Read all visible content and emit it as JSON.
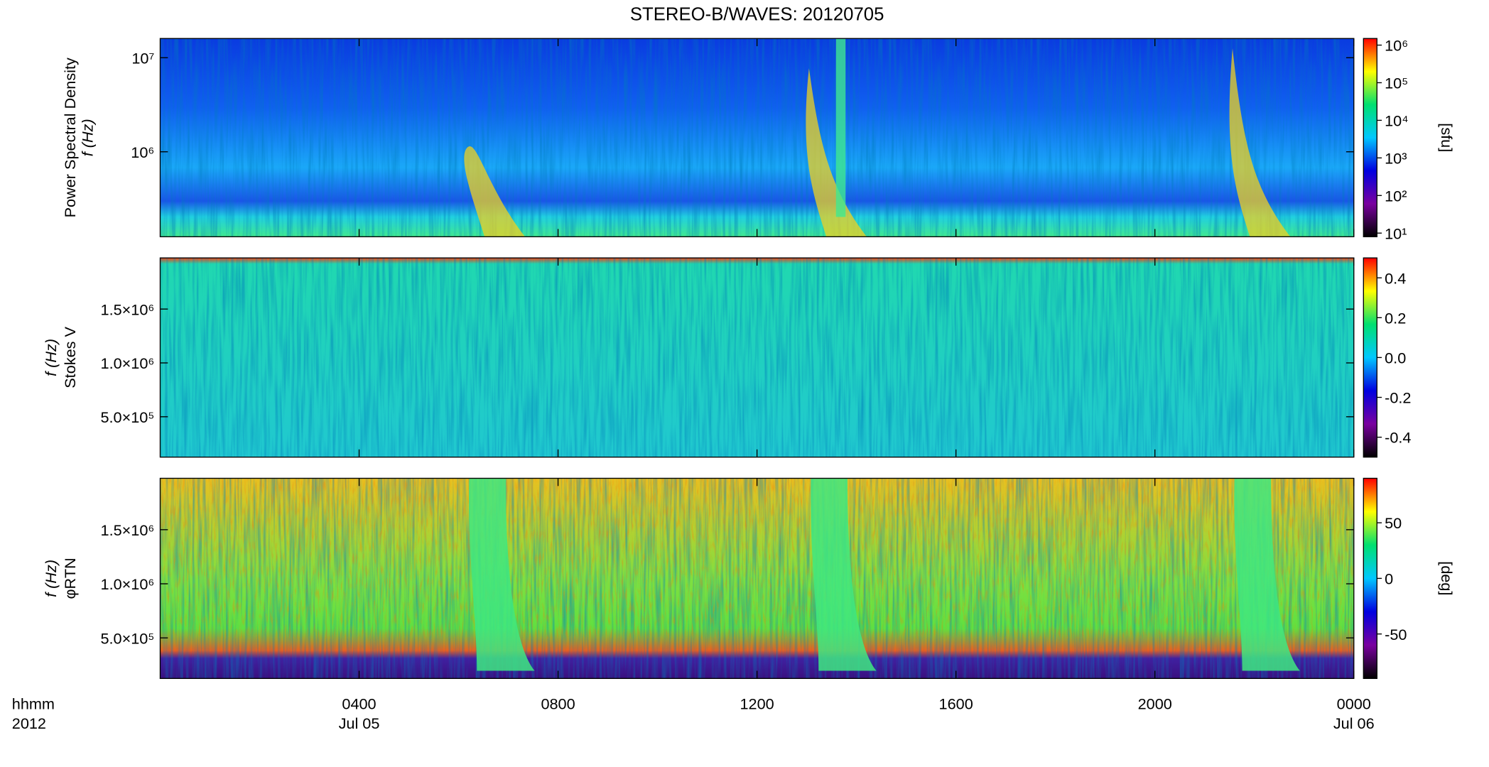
{
  "title": "STEREO-B/WAVES: 20120705",
  "chart_data": [
    {
      "type": "heatmap",
      "ylabel": "Power Spectral Density",
      "yunit": "f (Hz)",
      "log_y": true,
      "xlim": [
        0,
        24
      ],
      "ylim": [
        125000,
        16000000
      ],
      "yticks": [
        {
          "value": 1000000,
          "label": "10⁶"
        },
        {
          "value": 10000000,
          "label": "10⁷"
        }
      ],
      "colorbar": {
        "label": "[sfu]",
        "log": true,
        "lim": [
          8,
          1500000
        ],
        "colors": [
          "#000000",
          "#7a00a0",
          "#0000e0",
          "#00c8ff",
          "#00e070",
          "#ffff00",
          "#ff0000"
        ],
        "ticks": [
          {
            "value": 10,
            "label": "10¹"
          },
          {
            "value": 100,
            "label": "10²"
          },
          {
            "value": 1000,
            "label": "10³"
          },
          {
            "value": 10000,
            "label": "10⁴"
          },
          {
            "value": 100000,
            "label": "10⁵"
          },
          {
            "value": 1000000,
            "label": "10⁶"
          }
        ]
      }
    },
    {
      "type": "heatmap",
      "ylabel": "Stokes V",
      "yunit": "f (Hz)",
      "log_y": false,
      "xlim": [
        0,
        24
      ],
      "ylim": [
        125000,
        1975000
      ],
      "yticks": [
        {
          "value": 500000,
          "label": "5.0×10⁵"
        },
        {
          "value": 1000000,
          "label": "1.0×10⁶"
        },
        {
          "value": 1500000,
          "label": "1.5×10⁶"
        }
      ],
      "colorbar": {
        "log": false,
        "lim": [
          -0.5,
          0.5
        ],
        "colors": [
          "#000000",
          "#7a00a0",
          "#0000e0",
          "#00c8ff",
          "#00e070",
          "#ffff00",
          "#ff0000"
        ],
        "ticks": [
          -0.4,
          -0.2,
          {
            "value": 0,
            "label": "0.0"
          },
          0.2,
          0.4
        ]
      }
    },
    {
      "type": "heatmap",
      "ylabel": "φRTN",
      "yunit": "f (Hz)",
      "log_y": false,
      "xlim": [
        0,
        24
      ],
      "ylim": [
        125000,
        1975000
      ],
      "yticks": [
        {
          "value": 500000,
          "label": "5.0×10⁵"
        },
        {
          "value": 1000000,
          "label": "1.0×10⁶"
        },
        {
          "value": 1500000,
          "label": "1.5×10⁶"
        }
      ],
      "colorbar": {
        "label": "[deg]",
        "log": false,
        "lim": [
          -90,
          90
        ],
        "colors": [
          "#000000",
          "#7a00a0",
          "#0000e0",
          "#00c8ff",
          "#00e070",
          "#ffff00",
          "#ff0000"
        ],
        "ticks": [
          -50,
          0,
          50
        ]
      },
      "xticks": [
        {
          "value": 4,
          "label": "0400"
        },
        {
          "value": 8,
          "label": "0800"
        },
        {
          "value": 12,
          "label": "1200"
        },
        {
          "value": 16,
          "label": "1600"
        },
        {
          "value": 20,
          "label": "2000"
        },
        {
          "value": 24,
          "label": "0000"
        }
      ],
      "date_labels": [
        {
          "value": 4,
          "label": "Jul 05"
        },
        {
          "value": 24,
          "label": "Jul 06"
        }
      ],
      "xlabel": [
        "hhmm",
        "2012"
      ]
    }
  ]
}
